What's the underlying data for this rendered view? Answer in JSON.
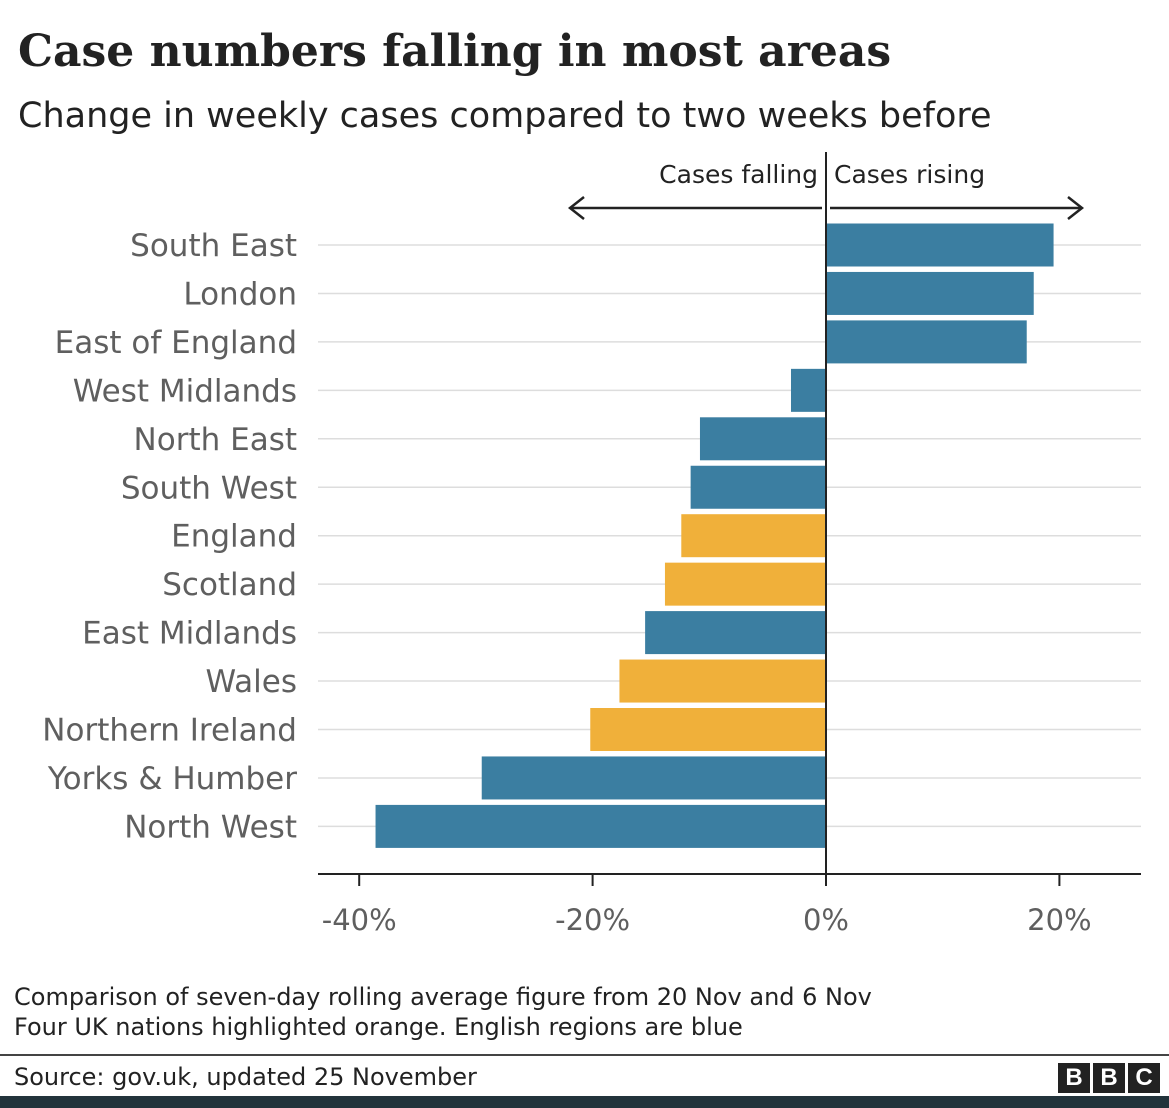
{
  "title": "Case numbers falling in most areas",
  "subtitle": "Change in weekly cases compared to two weeks before",
  "direction_labels": {
    "falling": "Cases falling",
    "rising": "Cases rising"
  },
  "colors": {
    "region": "#3b7ea1",
    "nation": "#f0b03a",
    "grid": "#dddddd",
    "axis": "#222222",
    "label": "#5f5f5f"
  },
  "chart_data": {
    "type": "bar",
    "orientation": "horizontal",
    "title": "Case numbers falling in most areas",
    "subtitle": "Change in weekly cases compared to two weeks before",
    "xlabel": "",
    "ylabel": "",
    "xlim": [
      -40,
      25
    ],
    "ticks": [
      {
        "value": -40,
        "label": "-40%"
      },
      {
        "value": -20,
        "label": "-20%"
      },
      {
        "value": 0,
        "label": "0%"
      },
      {
        "value": 20,
        "label": "20%"
      }
    ],
    "grid": true,
    "categories": [
      "South East",
      "London",
      "East of England",
      "West Midlands",
      "North East",
      "South West",
      "England",
      "Scotland",
      "East Midlands",
      "Wales",
      "Northern Ireland",
      "Yorks & Humber",
      "North West"
    ],
    "values": [
      19.5,
      17.8,
      17.2,
      -3.0,
      -10.8,
      -11.6,
      -12.4,
      -13.8,
      -15.5,
      -17.7,
      -20.2,
      -29.5,
      -38.6
    ],
    "groups": [
      "region",
      "region",
      "region",
      "region",
      "region",
      "region",
      "nation",
      "nation",
      "region",
      "nation",
      "nation",
      "region",
      "region"
    ]
  },
  "notes": [
    "Comparison of seven-day rolling average figure from 20 Nov and 6 Nov",
    "Four UK nations highlighted orange. English regions are blue"
  ],
  "source": "Source: gov.uk, updated 25 November",
  "logo": [
    "B",
    "B",
    "C"
  ]
}
